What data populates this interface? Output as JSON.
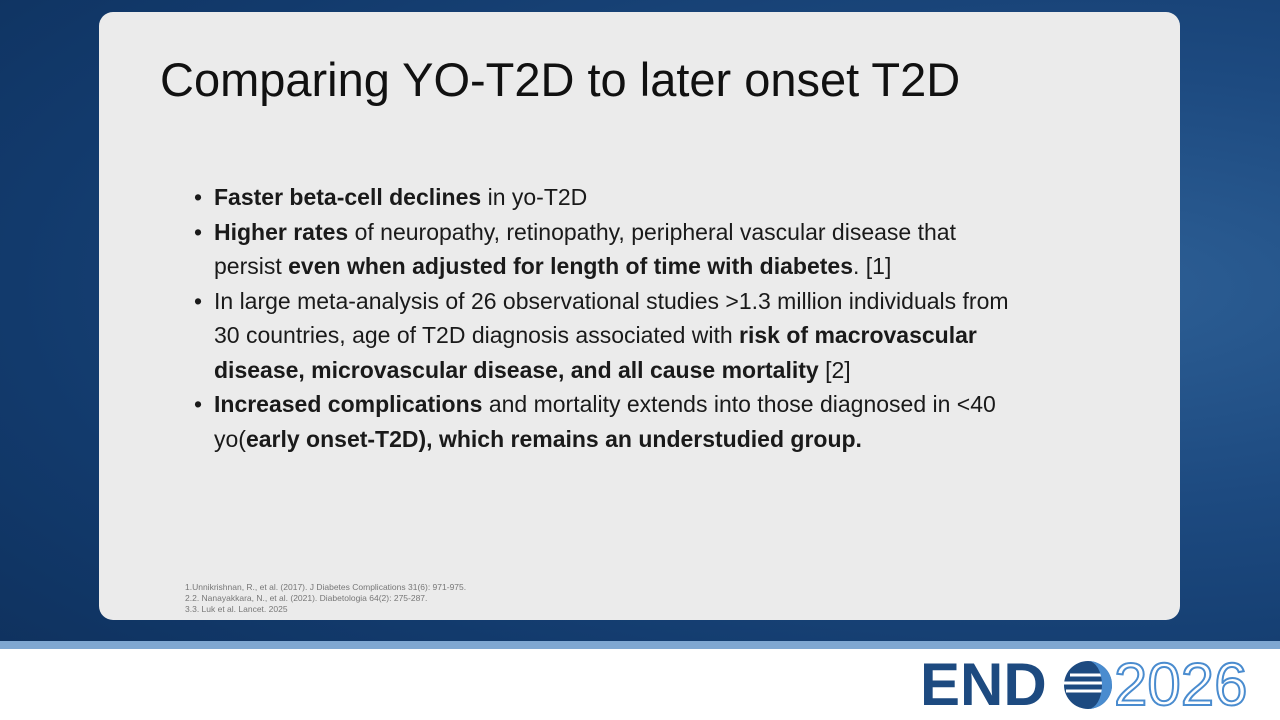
{
  "slide": {
    "title": "Comparing YO-T2D to later onset T2D",
    "bullets": [
      {
        "runs": [
          {
            "text": "Faster beta-cell declines",
            "bold": true
          },
          {
            "text": " in yo-T2D",
            "bold": false
          }
        ]
      },
      {
        "runs": [
          {
            "text": "Higher rates",
            "bold": true
          },
          {
            "text": " of neuropathy, retinopathy, peripheral vascular disease that persist ",
            "bold": false
          },
          {
            "text": "even when adjusted for length of time with diabetes",
            "bold": true
          },
          {
            "text": ". [1]",
            "bold": false
          }
        ]
      },
      {
        "runs": [
          {
            "text": "In large meta-analysis of 26 observational studies >1.3 million individuals from 30 countries, age of T2D diagnosis associated with ",
            "bold": false
          },
          {
            "text": "risk of macrovascular disease, microvascular disease, and all cause mortality",
            "bold": true
          },
          {
            "text": " [2]",
            "bold": false
          }
        ]
      },
      {
        "runs": [
          {
            "text": "Increased complications",
            "bold": true
          },
          {
            "text": " and mortality extends into those diagnosed in <40 yo(",
            "bold": false
          },
          {
            "text": "early onset-T2D), which remains an understudied group.",
            "bold": true
          }
        ]
      }
    ],
    "references": [
      "1.Unnikrishnan, R., et al. (2017). J Diabetes Complications 31(6): 971-975.",
      "2.2. Nanayakkara, N., et al. (2021). Diabetologia 64(2): 275-287.",
      "3.3. Luk et al. Lancet. 2025"
    ],
    "logo": {
      "prefix": "END",
      "year": "2026"
    }
  }
}
